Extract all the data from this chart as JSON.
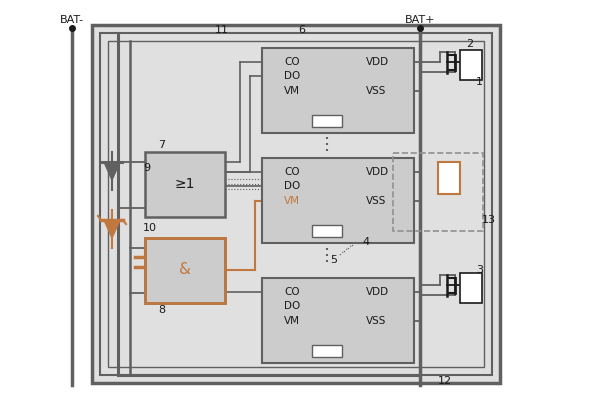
{
  "bg_color": "#e0e0e0",
  "white": "#ffffff",
  "black": "#1a1a1a",
  "dgray": "#606060",
  "lgray": "#cccccc",
  "copper": "#c07840",
  "dashed": "#909090",
  "labels": {
    "BAT_minus": "BAT-",
    "BAT_plus": "BAT+",
    "n1": "1",
    "n2": "2",
    "n3": "3",
    "n4": "4",
    "n5": "5",
    "n6": "6",
    "n7": "7",
    "n8": "8",
    "n9": "9",
    "n10": "10",
    "n11": "11",
    "n12": "12",
    "n13": "13"
  },
  "logic_label": "&",
  "mux_label": "≥1"
}
